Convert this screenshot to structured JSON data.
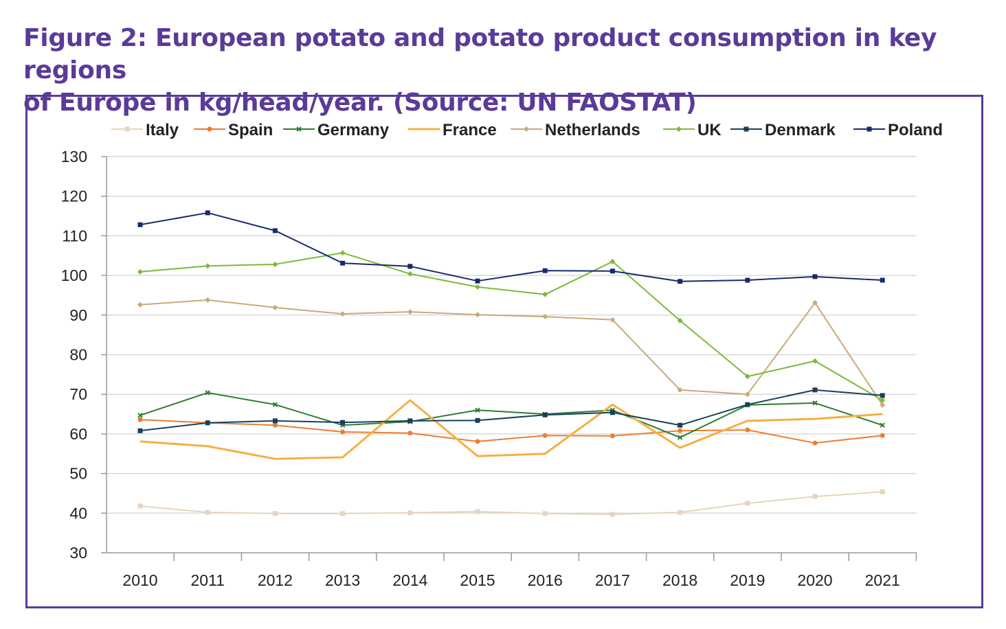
{
  "title": "Figure 2: European potato and potato product consumption in key regions of Europe in kg/head/year. (Source: UN FAOSTAT)",
  "title_lines": [
    "Figure 2: European potato and potato product consumption in key regions",
    "of Europe in kg/head/year. (Source: UN FAOSTAT)"
  ],
  "chart_data": {
    "type": "line",
    "title": "Figure 2: European potato and potato product consumption in key regions of Europe in kg/head/year. (Source: UN FAOSTAT)",
    "xlabel": "",
    "ylabel": "",
    "ylim": [
      30,
      130
    ],
    "yticks": [
      30,
      40,
      50,
      60,
      70,
      80,
      90,
      100,
      110,
      120,
      130
    ],
    "grid": "horizontal",
    "legend": "top",
    "categories": [
      "2010",
      "2011",
      "2012",
      "2013",
      "2014",
      "2015",
      "2016",
      "2017",
      "2018",
      "2019",
      "2020",
      "2021"
    ],
    "series": [
      {
        "name": "Italy",
        "color": "#e6d4bd",
        "marker": "square",
        "values": [
          41.8,
          40.2,
          39.9,
          39.9,
          40.1,
          40.4,
          39.9,
          39.7,
          40.2,
          42.5,
          44.2,
          45.4
        ]
      },
      {
        "name": "Spain",
        "color": "#ed7d31",
        "marker": "circle",
        "values": [
          63.6,
          62.8,
          62.2,
          60.5,
          60.2,
          58.1,
          59.6,
          59.5,
          60.8,
          61.0,
          57.7,
          59.6
        ]
      },
      {
        "name": "Germany",
        "color": "#2e7d32",
        "marker": "x",
        "values": [
          64.7,
          70.4,
          67.4,
          62.2,
          63.1,
          66.0,
          65.0,
          66.0,
          59.1,
          67.3,
          67.8,
          62.2
        ]
      },
      {
        "name": "France",
        "color": "#f5b041",
        "marker": "none",
        "values": [
          58.1,
          56.9,
          53.7,
          54.1,
          68.5,
          54.4,
          55.0,
          67.4,
          56.5,
          63.3,
          63.8,
          65.0
        ]
      },
      {
        "name": "Netherlands",
        "color": "#c9a97a",
        "marker": "diamond",
        "values": [
          92.6,
          93.8,
          91.9,
          90.3,
          90.8,
          90.1,
          89.6,
          88.8,
          71.1,
          70.0,
          93.1,
          67.3
        ]
      },
      {
        "name": "UK",
        "color": "#7cba3a",
        "marker": "diamond",
        "values": [
          100.9,
          102.4,
          102.8,
          105.7,
          100.4,
          97.1,
          95.2,
          103.5,
          88.6,
          74.5,
          78.4,
          68.5
        ]
      },
      {
        "name": "Denmark",
        "color": "#17405a",
        "marker": "square",
        "values": [
          60.8,
          62.8,
          63.3,
          62.9,
          63.3,
          63.4,
          64.8,
          65.4,
          62.2,
          67.4,
          71.1,
          69.7
        ]
      },
      {
        "name": "Poland",
        "color": "#1a2a6c",
        "marker": "square",
        "values": [
          112.8,
          115.8,
          111.3,
          103.1,
          102.3,
          98.6,
          101.2,
          101.1,
          98.5,
          98.8,
          99.7,
          98.8
        ]
      }
    ]
  }
}
